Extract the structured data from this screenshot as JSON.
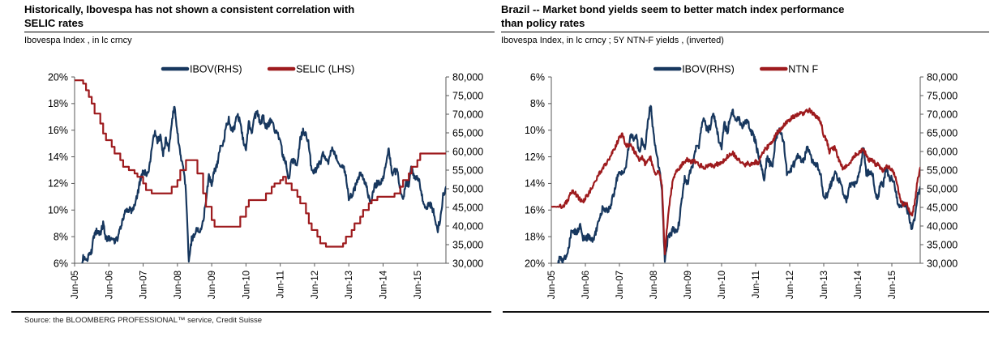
{
  "panels": [
    {
      "title_lines": [
        "Historically, Ibovespa has not shown a consistent correlation with",
        "SELIC rates"
      ],
      "subtitle": "Ibovespa Index , in lc crncy"
    },
    {
      "title_lines": [
        "Brazil -- Market bond yields seem to better match index performance",
        "than policy rates"
      ],
      "subtitle": "Ibovespa Index, in lc crncy ; 5Y NTN-F yields , (inverted)"
    }
  ],
  "footer": {
    "source": "Source: the BLOOMBERG PROFESSIONAL™ service, Credit Suisse"
  },
  "colors": {
    "ibov": "#17375E",
    "rate": "#9E1B1E",
    "axis": "#595959"
  },
  "chart_data": [
    {
      "type": "line",
      "title": "Historically, Ibovespa has not shown a consistent correlation with SELIC rates",
      "subtitle": "Ibovespa Index , in lc crncy",
      "x_start": "Jun-05",
      "x_end": "Apr-16",
      "x_tick_labels": [
        "Jun-05",
        "Jun-06",
        "Jun-07",
        "Jun-08",
        "Jun-09",
        "Jun-10",
        "Jun-11",
        "Jun-12",
        "Jun-13",
        "Jun-14",
        "Jun-15"
      ],
      "x_tick_month_index": [
        0,
        12,
        24,
        36,
        48,
        60,
        72,
        84,
        96,
        108,
        120
      ],
      "left_axis": {
        "unit": "%",
        "min": 6,
        "max": 20,
        "inverted": false,
        "tick_labels": [
          "20%",
          "18%",
          "16%",
          "14%",
          "12%",
          "10%",
          "8%",
          "6%"
        ]
      },
      "right_axis": {
        "min": 30000,
        "max": 80000,
        "tick_labels": [
          "80,000",
          "75,000",
          "70,000",
          "65,000",
          "60,000",
          "55,000",
          "50,000",
          "45,000",
          "40,000",
          "35,000",
          "30,000"
        ]
      },
      "legend": [
        {
          "label": "IBOV(RHS)",
          "color": "#17375E"
        },
        {
          "label": "SELIC (LHS)",
          "color": "#9E1B1E"
        }
      ],
      "series": [
        {
          "name": "IBOV(RHS)",
          "axis": "right",
          "color": "#17375E",
          "style": "daily",
          "monthly_values": [
            25500,
            26000,
            28000,
            31600,
            30200,
            31900,
            33500,
            38400,
            38600,
            37900,
            40400,
            36500,
            36600,
            37100,
            36200,
            36400,
            39300,
            41900,
            44500,
            44600,
            43900,
            45800,
            48600,
            52300,
            54400,
            54200,
            54600,
            60500,
            65300,
            63000,
            63900,
            59500,
            63500,
            60500,
            67900,
            72600,
            65000,
            59500,
            55700,
            49500,
            29800,
            36600,
            37600,
            39300,
            38200,
            40900,
            47300,
            53200,
            51500,
            54800,
            56500,
            61500,
            61500,
            67000,
            68600,
            65400,
            66500,
            70400,
            67500,
            63000,
            60900,
            67500,
            65100,
            69400,
            70700,
            67700,
            69300,
            66600,
            67400,
            68600,
            66100,
            64600,
            62400,
            58800,
            56500,
            52300,
            58300,
            56900,
            56800,
            63100,
            65800,
            64500,
            61800,
            54500,
            54400,
            56100,
            57100,
            59200,
            57100,
            57500,
            61000,
            59800,
            57400,
            56400,
            55900,
            53500,
            47500,
            48200,
            50000,
            52300,
            54300,
            52500,
            51500,
            47600,
            47100,
            50400,
            51600,
            51200,
            53200,
            55800,
            61300,
            54000,
            54600,
            54700,
            50000,
            46900,
            51600,
            51200,
            56200,
            52800,
            53100,
            50900,
            46600,
            45100,
            45900,
            45100,
            43300,
            38500,
            42000,
            48000,
            50500
          ]
        },
        {
          "name": "SELIC (LHS)",
          "axis": "left",
          "color": "#9E1B1E",
          "style": "step",
          "monthly_values": [
            19.75,
            19.75,
            19.75,
            19.5,
            19.0,
            18.5,
            18.0,
            17.25,
            17.25,
            16.5,
            15.75,
            15.25,
            15.25,
            14.75,
            14.25,
            14.25,
            13.75,
            13.25,
            13.25,
            13.0,
            13.0,
            12.75,
            12.5,
            12.5,
            12.0,
            11.5,
            11.5,
            11.25,
            11.25,
            11.25,
            11.25,
            11.25,
            11.25,
            11.25,
            11.75,
            11.75,
            12.25,
            13.0,
            13.0,
            13.75,
            13.75,
            13.75,
            13.75,
            12.75,
            12.75,
            11.25,
            10.25,
            10.25,
            9.25,
            8.75,
            8.75,
            8.75,
            8.75,
            8.75,
            8.75,
            8.75,
            8.75,
            8.75,
            9.5,
            9.5,
            10.25,
            10.75,
            10.75,
            10.75,
            10.75,
            10.75,
            10.75,
            11.25,
            11.25,
            11.75,
            12.0,
            12.0,
            12.25,
            12.5,
            12.0,
            12.0,
            11.5,
            11.5,
            11.0,
            10.5,
            10.5,
            9.75,
            9.0,
            8.5,
            8.5,
            8.0,
            7.5,
            7.5,
            7.25,
            7.25,
            7.25,
            7.25,
            7.25,
            7.25,
            7.5,
            8.0,
            8.0,
            8.5,
            9.0,
            9.0,
            9.5,
            10.0,
            10.0,
            10.5,
            10.75,
            10.75,
            11.0,
            11.0,
            11.0,
            11.0,
            11.0,
            11.0,
            11.25,
            11.25,
            11.75,
            12.25,
            12.25,
            12.75,
            13.25,
            13.25,
            13.75,
            14.25,
            14.25,
            14.25,
            14.25,
            14.25,
            14.25,
            14.25,
            14.25,
            14.25,
            14.25
          ]
        }
      ]
    },
    {
      "type": "line",
      "title": "Brazil -- Market bond yields seem to better match index performance than policy rates",
      "subtitle": "Ibovespa Index, in lc crncy ; 5Y NTN-F yields , (inverted)",
      "x_start": "Jun-05",
      "x_end": "Apr-16",
      "x_tick_labels": [
        "Jun-05",
        "Jun-06",
        "Jun-07",
        "Jun-08",
        "Jun-09",
        "Jun-10",
        "Jun-11",
        "Jun-12",
        "Jun-13",
        "Jun-14",
        "Jun-15"
      ],
      "x_tick_month_index": [
        0,
        12,
        24,
        36,
        48,
        60,
        72,
        84,
        96,
        108,
        120
      ],
      "left_axis": {
        "unit": "%",
        "min": 6,
        "max": 20,
        "inverted": true,
        "tick_labels": [
          "6%",
          "8%",
          "10%",
          "12%",
          "14%",
          "16%",
          "18%",
          "20%"
        ]
      },
      "right_axis": {
        "min": 30000,
        "max": 80000,
        "tick_labels": [
          "80,000",
          "75,000",
          "70,000",
          "65,000",
          "60,000",
          "55,000",
          "50,000",
          "45,000",
          "40,000",
          "35,000",
          "30,000"
        ]
      },
      "legend": [
        {
          "label": "IBOV(RHS)",
          "color": "#17375E"
        },
        {
          "label": "NTN F",
          "color": "#9E1B1E"
        }
      ],
      "series": [
        {
          "name": "IBOV(RHS)",
          "axis": "right",
          "color": "#17375E",
          "style": "daily",
          "monthly_values": [
            25500,
            26000,
            28000,
            31600,
            30200,
            31900,
            33500,
            38400,
            38600,
            37900,
            40400,
            36500,
            36600,
            37100,
            36200,
            36400,
            39300,
            41900,
            44500,
            44600,
            43900,
            45800,
            48600,
            52300,
            54400,
            54200,
            54600,
            60500,
            65300,
            63000,
            63900,
            59500,
            63500,
            60500,
            67900,
            72600,
            65000,
            59500,
            55700,
            49500,
            29800,
            36600,
            37600,
            39300,
            38200,
            40900,
            47300,
            53200,
            51500,
            54800,
            56500,
            61500,
            61500,
            67000,
            68600,
            65400,
            66500,
            70400,
            67500,
            63000,
            60900,
            67500,
            65100,
            69400,
            70700,
            67700,
            69300,
            66600,
            67400,
            68600,
            66100,
            64600,
            62400,
            58800,
            56500,
            52300,
            58300,
            56900,
            56800,
            63100,
            65800,
            64500,
            61800,
            54500,
            54400,
            56100,
            57100,
            59200,
            57100,
            57500,
            61000,
            59800,
            57400,
            56400,
            55900,
            53500,
            47500,
            48200,
            50000,
            52300,
            54300,
            52500,
            51500,
            47600,
            47100,
            50400,
            51600,
            51200,
            53200,
            55800,
            61300,
            54000,
            54600,
            54700,
            50000,
            46900,
            51600,
            51200,
            56200,
            52800,
            53100,
            50900,
            46600,
            45100,
            45900,
            45100,
            43300,
            38500,
            42000,
            48000,
            50500
          ]
        },
        {
          "name": "NTN F",
          "axis": "left",
          "color": "#9E1B1E",
          "style": "daily",
          "monthly_values": [
            15.75,
            15.75,
            15.75,
            15.75,
            15.7,
            15.5,
            15.2,
            14.7,
            14.6,
            14.9,
            15.2,
            15.4,
            15.1,
            14.8,
            14.4,
            14.0,
            13.6,
            13.2,
            12.9,
            12.6,
            12.3,
            11.9,
            11.5,
            11.0,
            10.6,
            10.3,
            11.0,
            11.2,
            11.0,
            11.5,
            11.8,
            12.2,
            12.0,
            12.5,
            12.3,
            12.1,
            12.9,
            13.3,
            13.1,
            14.2,
            19.4,
            16.8,
            14.9,
            13.6,
            13.2,
            12.9,
            12.6,
            12.3,
            12.2,
            12.4,
            12.3,
            12.4,
            12.6,
            12.7,
            12.8,
            12.7,
            12.6,
            12.7,
            12.6,
            12.5,
            12.4,
            12.2,
            12.0,
            11.8,
            11.7,
            12.0,
            12.2,
            12.4,
            12.6,
            12.5,
            12.6,
            12.5,
            12.4,
            12.5,
            11.9,
            11.5,
            11.3,
            11.0,
            10.8,
            10.4,
            10.1,
            9.9,
            9.6,
            9.4,
            9.2,
            9.0,
            8.9,
            8.8,
            8.7,
            8.8,
            8.6,
            8.5,
            8.7,
            8.9,
            9.1,
            9.4,
            10.4,
            10.8,
            11.6,
            11.4,
            11.3,
            12.0,
            12.6,
            12.9,
            12.7,
            12.6,
            12.2,
            11.9,
            11.7,
            11.6,
            11.4,
            11.9,
            12.3,
            12.1,
            12.5,
            12.6,
            12.9,
            13.1,
            12.8,
            12.7,
            13.0,
            13.4,
            14.1,
            15.3,
            15.6,
            15.4,
            16.0,
            16.4,
            15.6,
            13.8,
            12.8
          ]
        }
      ]
    }
  ]
}
